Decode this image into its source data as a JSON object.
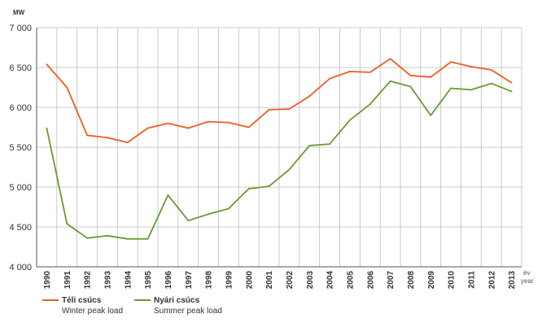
{
  "chart_data": {
    "type": "line",
    "y_unit": "MW",
    "x_unit_hu": "év",
    "x_unit_en": "year",
    "ylim": [
      4000,
      7000
    ],
    "ytick_step": 500,
    "yticks": [
      "4 000",
      "4 500",
      "5 000",
      "5 500",
      "6 000",
      "6 500",
      "7 000"
    ],
    "grid": true,
    "legend_position": "bottom-left",
    "x": [
      "1990",
      "1991",
      "1992",
      "1993",
      "1994",
      "1995",
      "1996",
      "1997",
      "1998",
      "1999",
      "2000",
      "2001",
      "2002",
      "2003",
      "2004",
      "2005",
      "2006",
      "2007",
      "2008",
      "2009",
      "2010",
      "2011",
      "2012",
      "2013"
    ],
    "series": [
      {
        "name": "Téli csúcs",
        "name_en": "Winter peak load",
        "color": "#f05a22",
        "values": [
          6540,
          6250,
          5650,
          5620,
          5560,
          5740,
          5800,
          5740,
          5820,
          5810,
          5750,
          5970,
          5980,
          6140,
          6360,
          6450,
          6440,
          6610,
          6400,
          6380,
          6570,
          6510,
          6470,
          6310
        ]
      },
      {
        "name": "Nyári csúcs",
        "name_en": "Summer peak load",
        "color": "#6a9a32",
        "values": [
          5740,
          4540,
          4360,
          4390,
          4350,
          4350,
          4900,
          4580,
          4660,
          4730,
          4980,
          5010,
          5220,
          5520,
          5540,
          5840,
          6040,
          6330,
          6260,
          5900,
          6240,
          6220,
          6300,
          6200
        ]
      }
    ]
  }
}
